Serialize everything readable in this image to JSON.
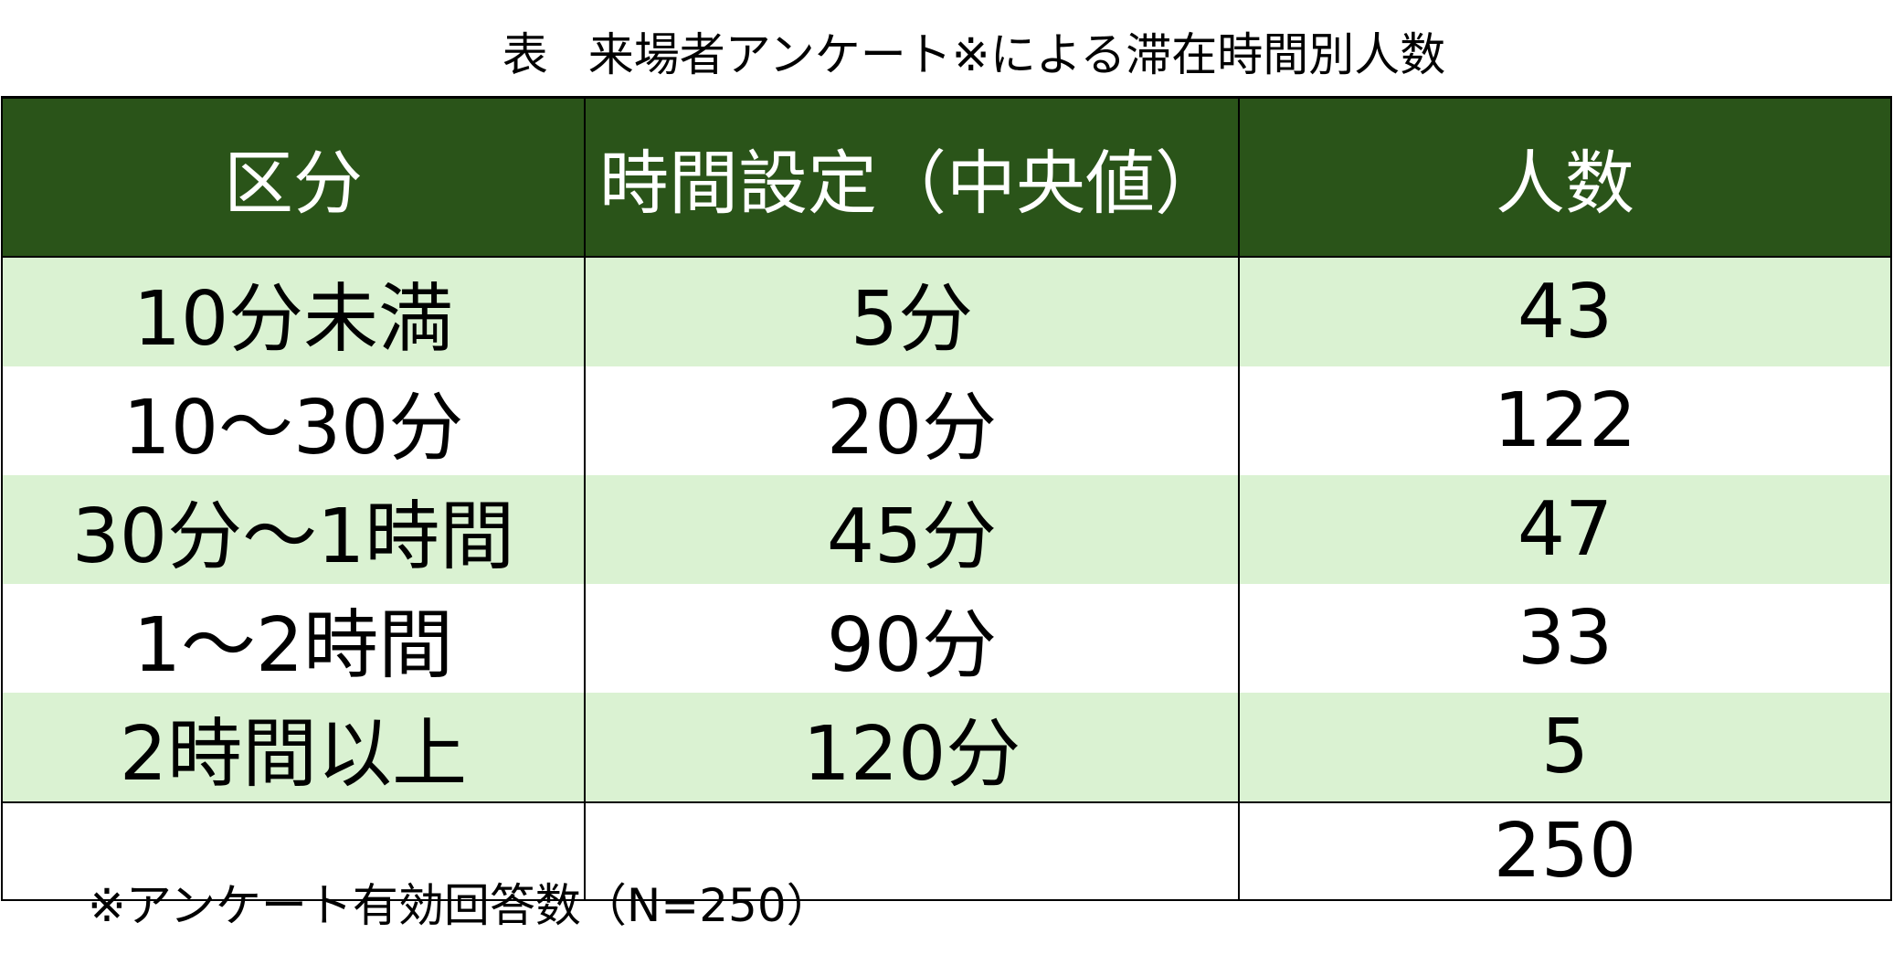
{
  "title": {
    "label": "表",
    "text": "来場者アンケート※による滞在時間別人数"
  },
  "colors": {
    "header_bg": "#2a5419",
    "header_text": "#ffffff",
    "band": "#daf2d2",
    "plain": "#ffffff",
    "border": "#000000"
  },
  "table": {
    "headers": [
      "区分",
      "時間設定（中央値）",
      "人数"
    ],
    "rows": [
      [
        "10分未満",
        "5分",
        "43"
      ],
      [
        "10～30分",
        "20分",
        "122"
      ],
      [
        "30分～1時間",
        "45分",
        "47"
      ],
      [
        "1～2時間",
        "90分",
        "33"
      ],
      [
        "2時間以上",
        "120分",
        "5"
      ]
    ],
    "total": [
      "",
      "",
      "250"
    ]
  },
  "footnote": "※アンケート有効回答数（N=250）"
}
